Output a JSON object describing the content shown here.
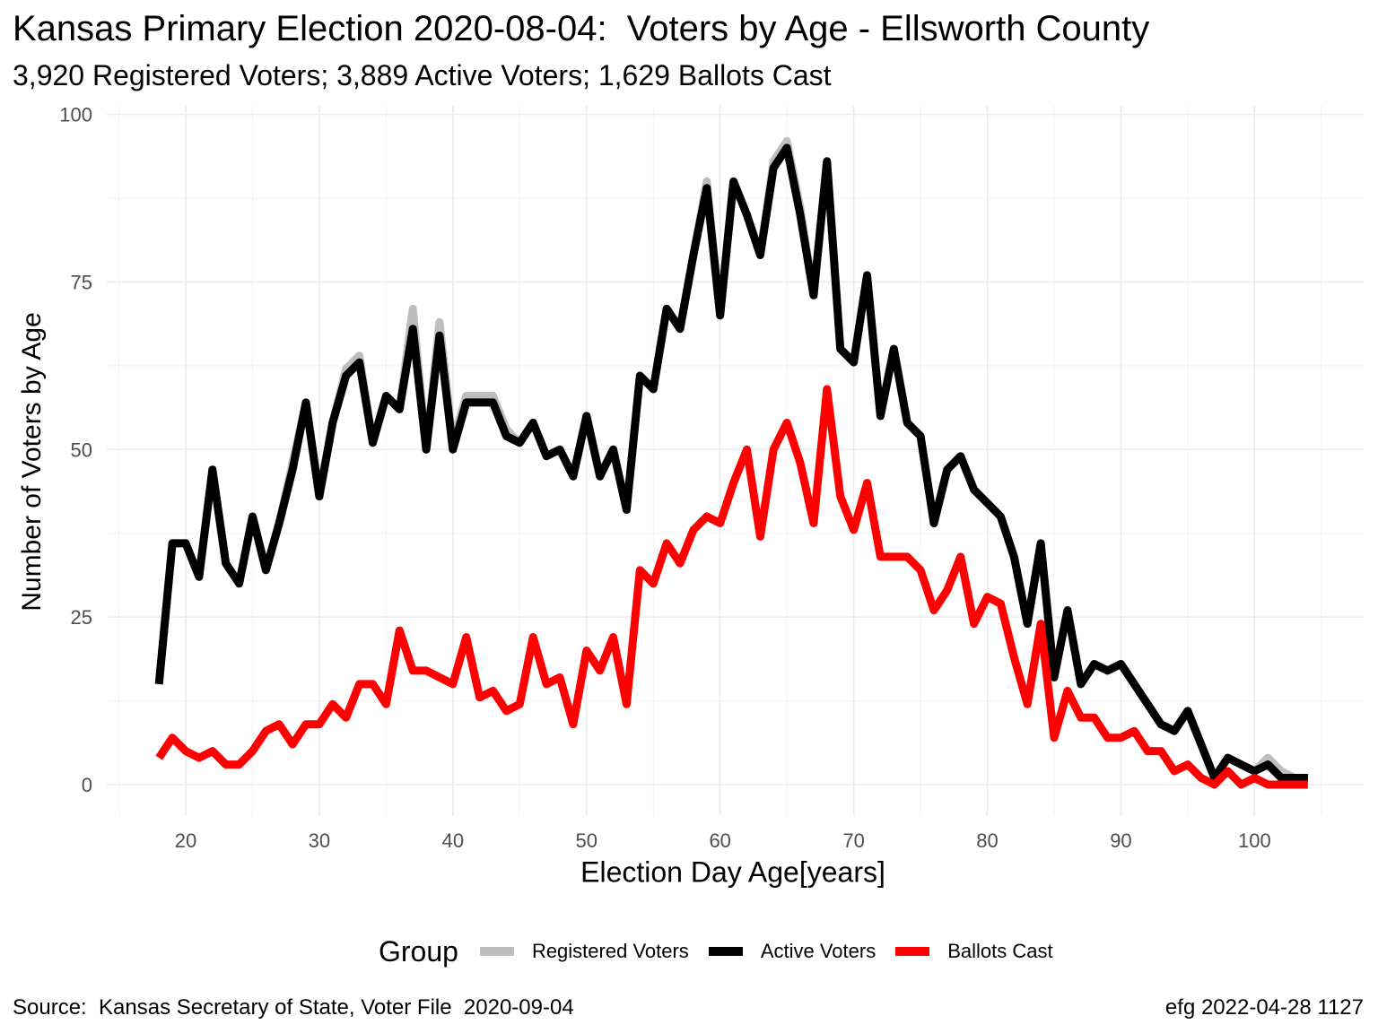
{
  "title": "Kansas Primary Election 2020-08-04:  Voters by Age - Ellsworth County",
  "subtitle": "3,920 Registered Voters; 3,889 Active Voters; 1,629 Ballots Cast",
  "caption_left": "Source:  Kansas Secretary of State, Voter File  2020-09-04",
  "caption_right": "efg 2022-04-28 1127",
  "legend": {
    "title": "Group",
    "items": [
      {
        "label": "Registered Voters",
        "color": "#bebebe"
      },
      {
        "label": "Active Voters",
        "color": "#000000"
      },
      {
        "label": "Ballots Cast",
        "color": "#ff0000"
      }
    ]
  },
  "chart_data": {
    "type": "line",
    "title": "Kansas Primary Election 2020-08-04:  Voters by Age - Ellsworth County",
    "xlabel": "Election Day Age[years]",
    "ylabel": "Number of Voters by Age",
    "xlim": [
      15,
      107
    ],
    "ylim": [
      -4,
      100
    ],
    "xticks": [
      20,
      30,
      40,
      50,
      60,
      70,
      80,
      90,
      100
    ],
    "yticks": [
      0,
      25,
      50,
      75,
      100
    ],
    "grid": true,
    "legend_position": "bottom",
    "x": [
      18,
      19,
      20,
      21,
      22,
      23,
      24,
      25,
      26,
      27,
      28,
      29,
      30,
      31,
      32,
      33,
      34,
      35,
      36,
      37,
      38,
      39,
      40,
      41,
      42,
      43,
      44,
      45,
      46,
      47,
      48,
      49,
      50,
      51,
      52,
      53,
      54,
      55,
      56,
      57,
      58,
      59,
      60,
      61,
      62,
      63,
      64,
      65,
      66,
      67,
      68,
      69,
      70,
      71,
      72,
      73,
      74,
      75,
      76,
      77,
      78,
      79,
      80,
      81,
      82,
      83,
      84,
      85,
      86,
      87,
      88,
      89,
      90,
      91,
      92,
      93,
      94,
      95,
      96,
      97,
      98,
      99,
      100,
      101,
      102,
      103,
      104
    ],
    "series": [
      {
        "name": "Registered Voters",
        "color": "#bebebe",
        "values": [
          15,
          36,
          36,
          31,
          47,
          33,
          30,
          40,
          32,
          39,
          48,
          57,
          43,
          54,
          62,
          64,
          51,
          58,
          56,
          71,
          50,
          69,
          51,
          58,
          58,
          58,
          53,
          51,
          54,
          49,
          50,
          46,
          55,
          46,
          50,
          41,
          61,
          59,
          71,
          68,
          79,
          90,
          70,
          90,
          85,
          79,
          93,
          96,
          86,
          73,
          93,
          65,
          63,
          76,
          55,
          65,
          54,
          52,
          39,
          47,
          49,
          44,
          42,
          40,
          34,
          24,
          36,
          16,
          26,
          15,
          18,
          17,
          18,
          15,
          12,
          9,
          8,
          11,
          6,
          1,
          4,
          3,
          2,
          4,
          2,
          1,
          1
        ]
      },
      {
        "name": "Active Voters",
        "color": "#000000",
        "values": [
          15,
          36,
          36,
          31,
          47,
          33,
          30,
          40,
          32,
          39,
          47,
          57,
          43,
          54,
          61,
          63,
          51,
          58,
          56,
          68,
          50,
          67,
          50,
          57,
          57,
          57,
          52,
          51,
          54,
          49,
          50,
          46,
          55,
          46,
          50,
          41,
          61,
          59,
          71,
          68,
          79,
          89,
          70,
          90,
          85,
          79,
          92,
          95,
          85,
          73,
          93,
          65,
          63,
          76,
          55,
          65,
          54,
          52,
          39,
          47,
          49,
          44,
          42,
          40,
          34,
          24,
          36,
          16,
          26,
          15,
          18,
          17,
          18,
          15,
          12,
          9,
          8,
          11,
          6,
          1,
          4,
          3,
          2,
          3,
          1,
          1,
          1
        ]
      },
      {
        "name": "Ballots Cast",
        "color": "#ff0000",
        "values": [
          4,
          7,
          5,
          4,
          5,
          3,
          3,
          5,
          8,
          9,
          6,
          9,
          9,
          12,
          10,
          15,
          15,
          12,
          23,
          17,
          17,
          16,
          15,
          22,
          13,
          14,
          11,
          12,
          22,
          15,
          16,
          9,
          20,
          17,
          22,
          12,
          32,
          30,
          36,
          33,
          38,
          40,
          39,
          45,
          50,
          37,
          50,
          54,
          48,
          39,
          59,
          43,
          38,
          45,
          34,
          34,
          34,
          32,
          26,
          29,
          34,
          24,
          28,
          27,
          19,
          12,
          24,
          7,
          14,
          10,
          10,
          7,
          7,
          8,
          5,
          5,
          2,
          3,
          1,
          0,
          2,
          0,
          1,
          0,
          0,
          0,
          0
        ]
      }
    ]
  }
}
